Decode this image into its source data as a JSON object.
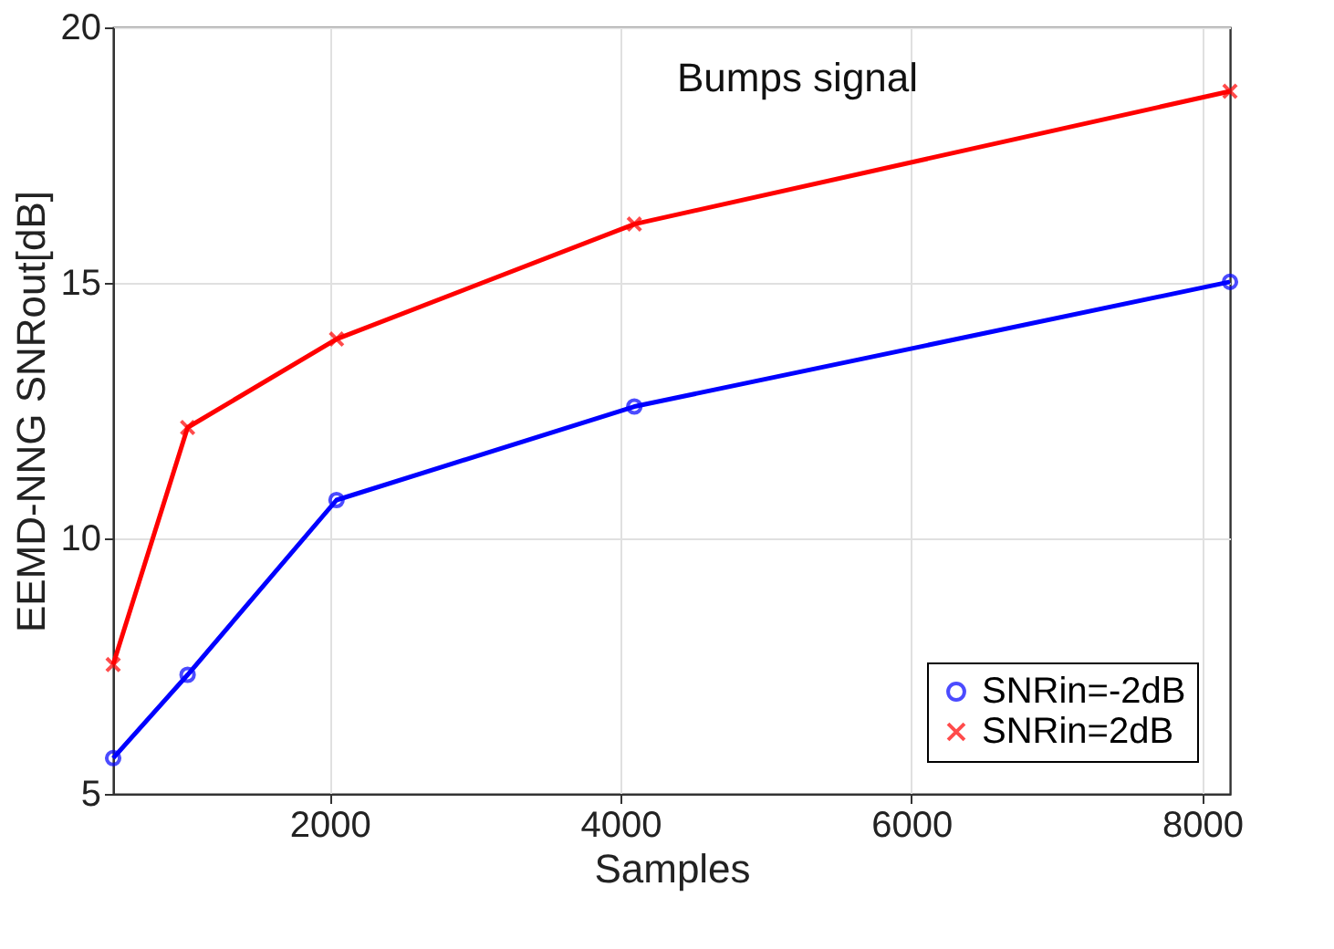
{
  "chart_data": {
    "type": "line",
    "xlabel": "Samples",
    "ylabel": "EEMD-NNG SNRout[dB]",
    "annotations": [
      "Bumps signal"
    ],
    "x": [
      512,
      1024,
      2048,
      4096,
      8192
    ],
    "series": [
      {
        "name": "SNRin=-2dB",
        "color": "#0000ff",
        "marker": "circle",
        "values": [
          5.7,
          7.33,
          10.75,
          12.58,
          15.02
        ]
      },
      {
        "name": "SNRin=2dB",
        "color": "#ff0000",
        "marker": "cross",
        "values": [
          7.53,
          12.17,
          13.9,
          16.15,
          18.75
        ]
      }
    ],
    "xlim": [
      512,
      8192
    ],
    "xticks": [
      2000,
      4000,
      6000,
      8000
    ],
    "ylim": [
      5,
      20
    ],
    "yticks": [
      5,
      10,
      15,
      20
    ],
    "grid": true,
    "legend": "bottom right",
    "line_style": "solid"
  }
}
